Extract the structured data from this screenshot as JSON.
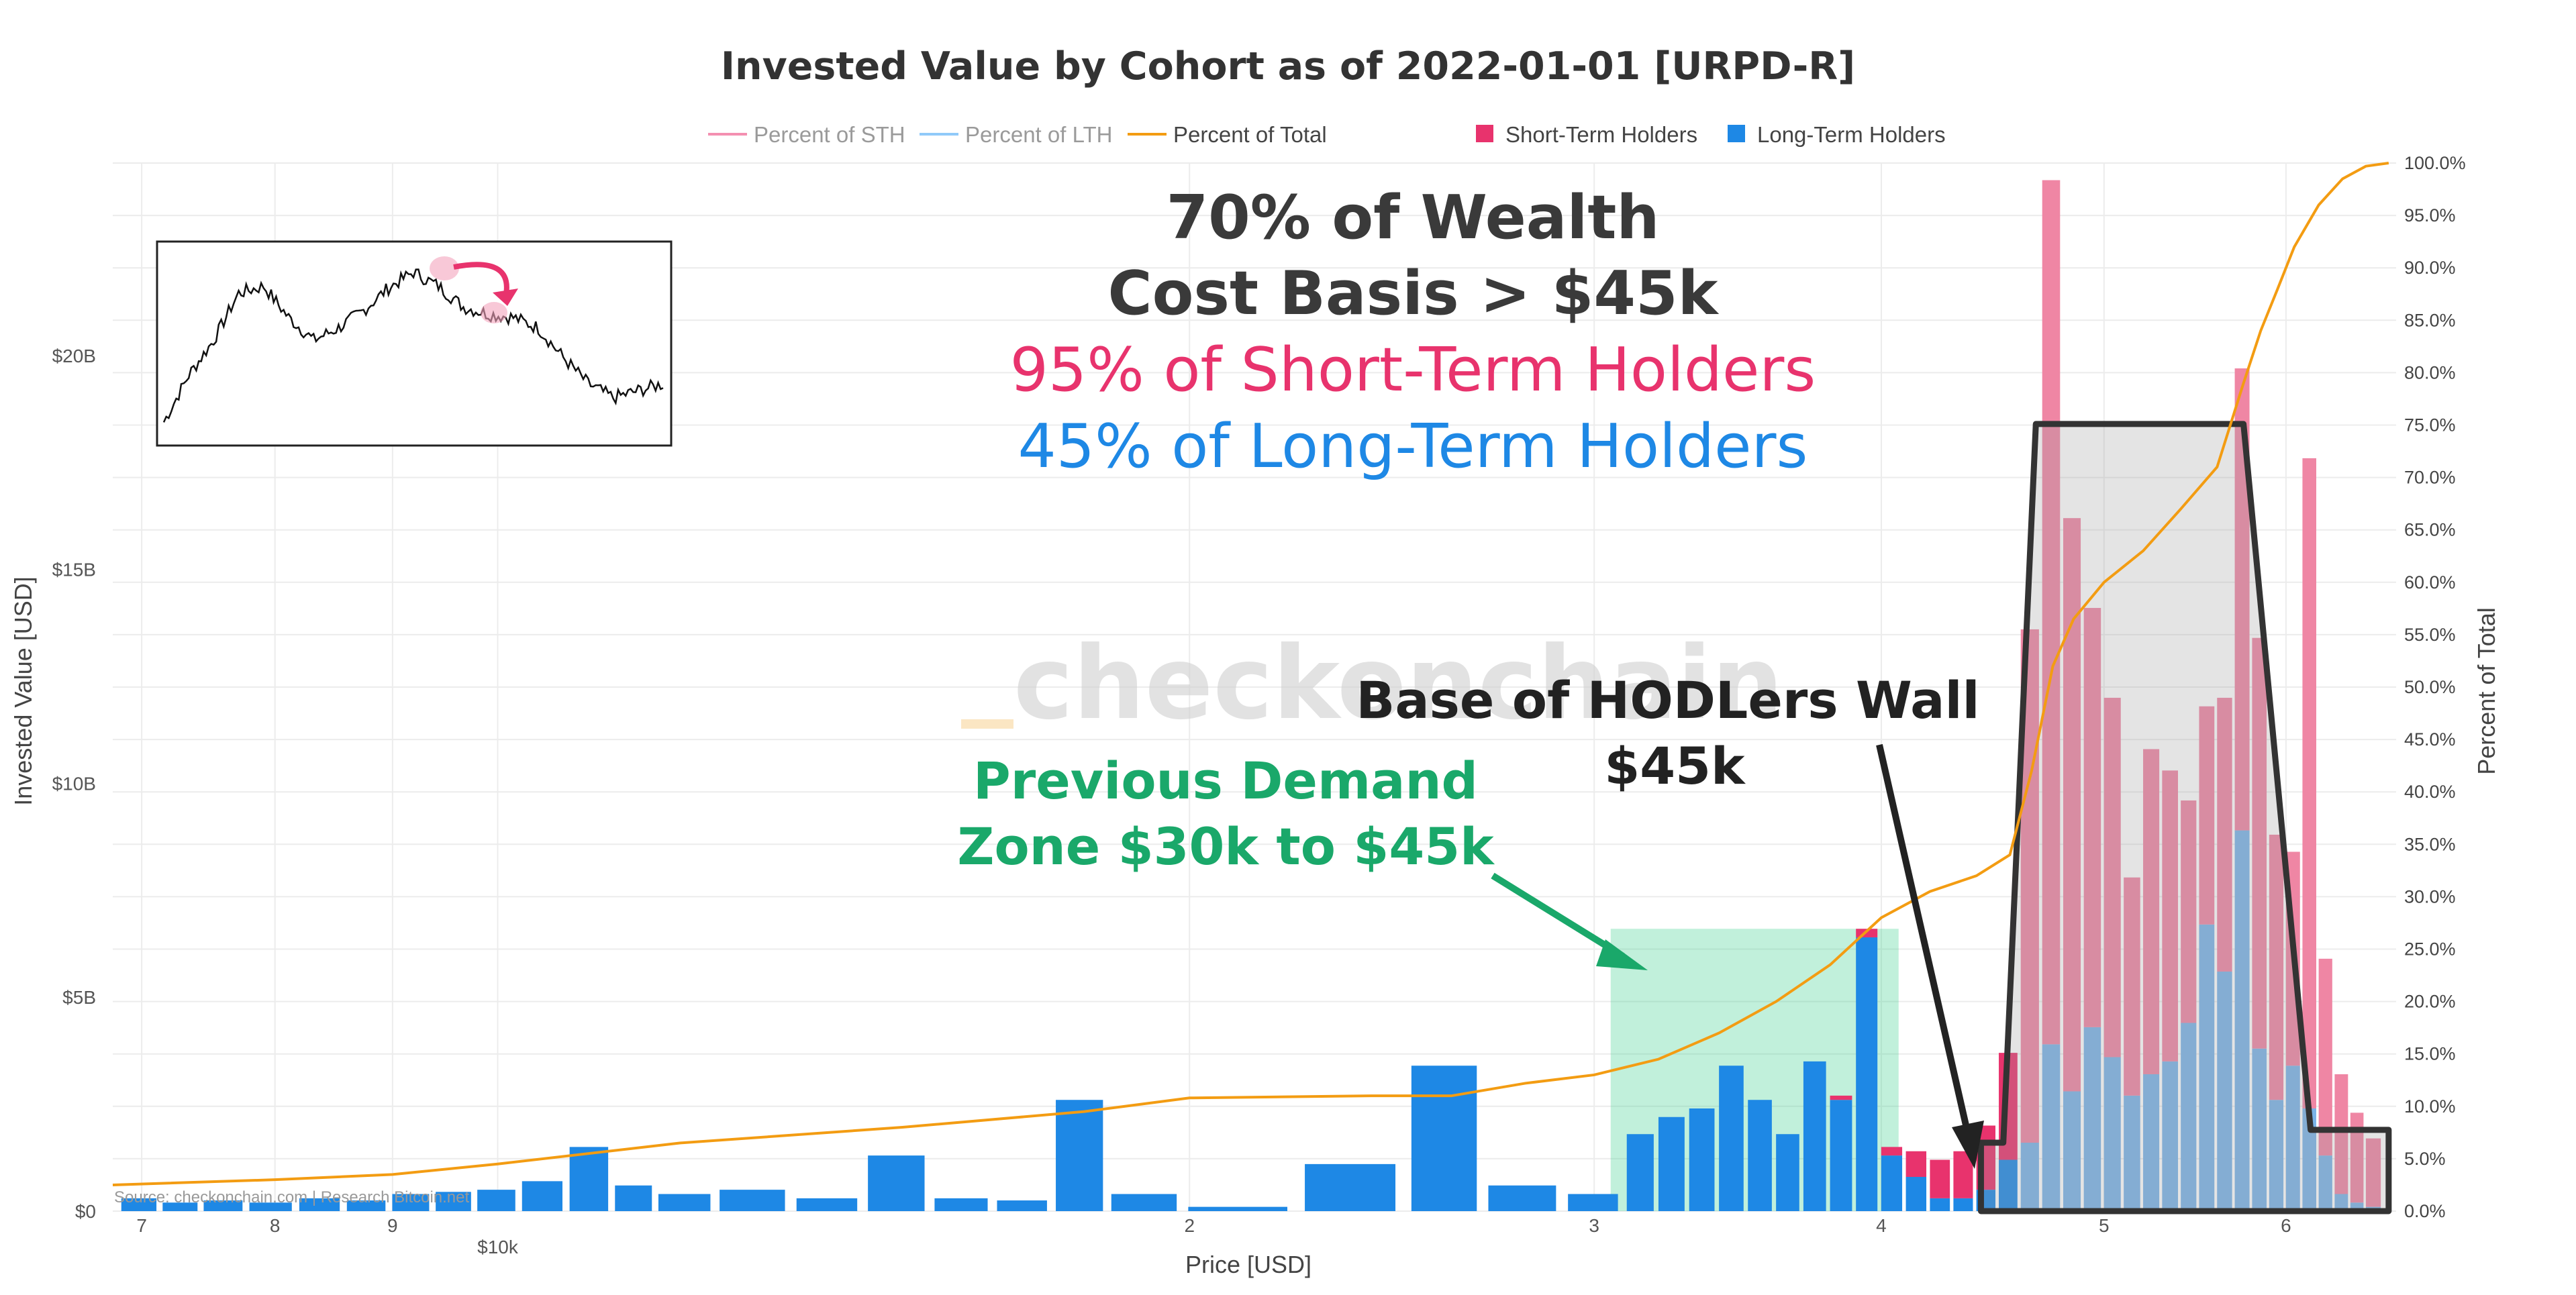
{
  "chart_data": {
    "type": "bar",
    "title": "Invested Value by Cohort as of 2022-01-01 [URPD-R]",
    "xlabel": "Price [USD]",
    "ylabel": "Invested Value [USD]",
    "y2label": "Percent of Total",
    "x_scale": "log",
    "xlim": [
      6800,
      67000
    ],
    "ylim": [
      0,
      24500000000
    ],
    "y2lim": [
      0,
      100
    ],
    "xticks": [
      {
        "value": 7000,
        "label": "7"
      },
      {
        "value": 8000,
        "label": "8"
      },
      {
        "value": 9000,
        "label": "9"
      },
      {
        "value": 10000,
        "label": "$10k"
      },
      {
        "value": 20000,
        "label": "2"
      },
      {
        "value": 30000,
        "label": "3"
      },
      {
        "value": 40000,
        "label": "4"
      },
      {
        "value": 50000,
        "label": "5"
      },
      {
        "value": 60000,
        "label": "6"
      }
    ],
    "yticks": [
      {
        "value": 0,
        "label": "$0"
      },
      {
        "value": 5000000000,
        "label": "$5B"
      },
      {
        "value": 10000000000,
        "label": "$10B"
      },
      {
        "value": 15000000000,
        "label": "$15B"
      },
      {
        "value": 20000000000,
        "label": "$20B"
      }
    ],
    "y2ticks": [
      {
        "value": 0,
        "label": "0.0%"
      },
      {
        "value": 5,
        "label": "5.0%"
      },
      {
        "value": 10,
        "label": "10.0%"
      },
      {
        "value": 15,
        "label": "15.0%"
      },
      {
        "value": 20,
        "label": "20.0%"
      },
      {
        "value": 25,
        "label": "25.0%"
      },
      {
        "value": 30,
        "label": "30.0%"
      },
      {
        "value": 35,
        "label": "35.0%"
      },
      {
        "value": 40,
        "label": "40.0%"
      },
      {
        "value": 45,
        "label": "45.0%"
      },
      {
        "value": 50,
        "label": "50.0%"
      },
      {
        "value": 55,
        "label": "55.0%"
      },
      {
        "value": 60,
        "label": "60.0%"
      },
      {
        "value": 65,
        "label": "65.0%"
      },
      {
        "value": 70,
        "label": "70.0%"
      },
      {
        "value": 75,
        "label": "75.0%"
      },
      {
        "value": 80,
        "label": "80.0%"
      },
      {
        "value": 85,
        "label": "85.0%"
      },
      {
        "value": 90,
        "label": "90.0%"
      },
      {
        "value": 95,
        "label": "95.0%"
      },
      {
        "value": 100,
        "label": "100.0%"
      }
    ],
    "legend": [
      {
        "name": "Percent of STH",
        "kind": "line",
        "color": "#f48fb1"
      },
      {
        "name": "Percent of LTH",
        "kind": "line",
        "color": "#90caf9"
      },
      {
        "name": "Percent of Total",
        "kind": "line",
        "color": "#f39c12"
      },
      {
        "name": "Short-Term Holders",
        "kind": "box",
        "color": "#e8336d"
      },
      {
        "name": "Long-Term Holders",
        "kind": "box",
        "color": "#1e88e5"
      }
    ],
    "legend_position": "top-center",
    "bar_bins": [
      {
        "price": 7000,
        "sth": 0.0,
        "lth": 0.3
      },
      {
        "price": 7300,
        "sth": 0.0,
        "lth": 0.2
      },
      {
        "price": 7600,
        "sth": 0.0,
        "lth": 0.25
      },
      {
        "price": 8000,
        "sth": 0.0,
        "lth": 0.2
      },
      {
        "price": 8400,
        "sth": 0.0,
        "lth": 0.3
      },
      {
        "price": 8800,
        "sth": 0.0,
        "lth": 0.25
      },
      {
        "price": 9200,
        "sth": 0.0,
        "lth": 0.4
      },
      {
        "price": 9600,
        "sth": 0.0,
        "lth": 0.45
      },
      {
        "price": 10000,
        "sth": 0.0,
        "lth": 0.5
      },
      {
        "price": 10500,
        "sth": 0.0,
        "lth": 0.7
      },
      {
        "price": 11000,
        "sth": 0.0,
        "lth": 1.5
      },
      {
        "price": 11500,
        "sth": 0.0,
        "lth": 0.6
      },
      {
        "price": 12000,
        "sth": 0.0,
        "lth": 0.4
      },
      {
        "price": 13000,
        "sth": 0.0,
        "lth": 0.5
      },
      {
        "price": 14000,
        "sth": 0.0,
        "lth": 0.3
      },
      {
        "price": 15000,
        "sth": 0.0,
        "lth": 1.3
      },
      {
        "price": 16000,
        "sth": 0.0,
        "lth": 0.3
      },
      {
        "price": 17000,
        "sth": 0.0,
        "lth": 0.25
      },
      {
        "price": 18000,
        "sth": 0.0,
        "lth": 2.6
      },
      {
        "price": 19000,
        "sth": 0.0,
        "lth": 0.4
      },
      {
        "price": 21000,
        "sth": 0.0,
        "lth": 0.1
      },
      {
        "price": 24000,
        "sth": 0.0,
        "lth": 1.1
      },
      {
        "price": 26000,
        "sth": 0.0,
        "lth": 3.4
      },
      {
        "price": 28000,
        "sth": 0.0,
        "lth": 0.6
      },
      {
        "price": 30500,
        "sth": 0.0,
        "lth": 0.4
      },
      {
        "price": 31500,
        "sth": 0.0,
        "lth": 1.8
      },
      {
        "price": 32500,
        "sth": 0.0,
        "lth": 2.2
      },
      {
        "price": 33500,
        "sth": 0.0,
        "lth": 2.4
      },
      {
        "price": 34500,
        "sth": 0.0,
        "lth": 3.4
      },
      {
        "price": 35500,
        "sth": 0.0,
        "lth": 2.6
      },
      {
        "price": 36500,
        "sth": 0.0,
        "lth": 1.8
      },
      {
        "price": 37500,
        "sth": 0.0,
        "lth": 3.5
      },
      {
        "price": 38500,
        "sth": 0.1,
        "lth": 2.6
      },
      {
        "price": 39500,
        "sth": 0.2,
        "lth": 6.4
      },
      {
        "price": 40500,
        "sth": 0.2,
        "lth": 1.3
      },
      {
        "price": 41500,
        "sth": 0.6,
        "lth": 0.8
      },
      {
        "price": 42500,
        "sth": 0.9,
        "lth": 0.3
      },
      {
        "price": 43500,
        "sth": 1.1,
        "lth": 0.3
      },
      {
        "price": 44500,
        "sth": 1.5,
        "lth": 0.5
      },
      {
        "price": 45500,
        "sth": 2.5,
        "lth": 1.2
      },
      {
        "price": 46500,
        "sth": 12.0,
        "lth": 1.6
      },
      {
        "price": 47500,
        "sth": 20.2,
        "lth": 3.9
      },
      {
        "price": 48500,
        "sth": 13.4,
        "lth": 2.8
      },
      {
        "price": 49500,
        "sth": 9.8,
        "lth": 4.3
      },
      {
        "price": 50500,
        "sth": 8.4,
        "lth": 3.6
      },
      {
        "price": 51500,
        "sth": 5.1,
        "lth": 2.7
      },
      {
        "price": 52500,
        "sth": 7.6,
        "lth": 3.2
      },
      {
        "price": 53500,
        "sth": 6.8,
        "lth": 3.5
      },
      {
        "price": 54500,
        "sth": 5.2,
        "lth": 4.4
      },
      {
        "price": 55500,
        "sth": 5.1,
        "lth": 6.7
      },
      {
        "price": 56500,
        "sth": 6.4,
        "lth": 5.6
      },
      {
        "price": 57500,
        "sth": 10.8,
        "lth": 8.9
      },
      {
        "price": 58500,
        "sth": 9.6,
        "lth": 3.8
      },
      {
        "price": 59500,
        "sth": 6.2,
        "lth": 2.6
      },
      {
        "price": 60500,
        "sth": 5.0,
        "lth": 3.4
      },
      {
        "price": 61500,
        "sth": 15.2,
        "lth": 2.4
      },
      {
        "price": 62500,
        "sth": 4.6,
        "lth": 1.3
      },
      {
        "price": 63500,
        "sth": 2.8,
        "lth": 0.4
      },
      {
        "price": 64500,
        "sth": 2.1,
        "lth": 0.2
      },
      {
        "price": 65500,
        "sth": 1.6,
        "lth": 0.1
      }
    ],
    "bar_units": "billions USD",
    "percent_of_total": {
      "x": [
        6800,
        8000,
        9000,
        10000,
        12000,
        15000,
        18000,
        20000,
        24000,
        26000,
        28000,
        30000,
        32000,
        34000,
        36000,
        38000,
        40000,
        42000,
        44000,
        45500,
        46500,
        47500,
        48500,
        50000,
        52000,
        54000,
        56000,
        57500,
        58500,
        59500,
        60500,
        62000,
        63500,
        65000,
        66500
      ],
      "y": [
        2.5,
        3.0,
        3.5,
        4.5,
        6.5,
        8.0,
        9.5,
        10.8,
        11.0,
        11.0,
        12.2,
        13.0,
        14.5,
        17.0,
        20.0,
        23.5,
        28.0,
        30.5,
        32.0,
        34.0,
        42.0,
        52.0,
        56.5,
        60.0,
        63.0,
        67.0,
        71.0,
        79.0,
        84.0,
        88.0,
        92.0,
        96.0,
        98.5,
        99.7,
        100.0
      ]
    },
    "annotations": {
      "headline_1": "70% of Wealth",
      "headline_2": "Cost Basis > $45k",
      "sth_line": "95% of Short-Term Holders",
      "lth_line": "45% of Long-Term Holders",
      "wall_line_1": "Base of HODLers Wall",
      "wall_line_2": "$45k",
      "zone_line_1": "Previous Demand",
      "zone_line_2": "Zone $30k to $45k",
      "watermark": "checkonchain",
      "source": "Source: checkonchain.com | Research Bitcoin.net"
    },
    "demand_zone": {
      "x_from": 30500,
      "x_to": 40700,
      "y_to": 6600000000,
      "color": "#3fcf8e"
    },
    "wall_shape_points": [
      [
        44200,
        0.0
      ],
      [
        44200,
        1.6
      ],
      [
        45200,
        1.6
      ],
      [
        46700,
        18.4
      ],
      [
        57500,
        18.4
      ],
      [
        61500,
        1.9
      ],
      [
        66500,
        1.9
      ],
      [
        66500,
        0.0
      ]
    ],
    "wall_shape_units": "x in USD, y in billions USD",
    "colors": {
      "sth": "#e8336d",
      "sth_light": "#ef86a4",
      "lth": "#1e88e5",
      "lth_light": "#7ab3e8",
      "total": "#f39c12",
      "grid": "#ececec"
    }
  }
}
